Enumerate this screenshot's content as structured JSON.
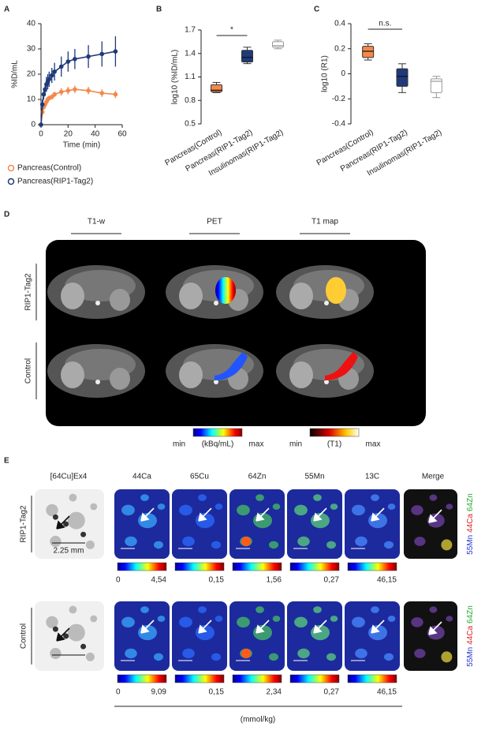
{
  "panel_labels": [
    "A",
    "B",
    "C",
    "D",
    "E"
  ],
  "chart_data": [
    {
      "type": "line",
      "ylabel": "%ID/mL",
      "xlabel": "Time (min)",
      "x": [
        0,
        1,
        2,
        3,
        4,
        5,
        6,
        8,
        10,
        15,
        20,
        25,
        35,
        45,
        55
      ],
      "series": [
        {
          "name": "Pancreas(Control)",
          "color": "#f4894b",
          "values": [
            0,
            5,
            7,
            8,
            9,
            10,
            10.5,
            11,
            12,
            13,
            13.5,
            14,
            13.5,
            12.5,
            12
          ],
          "errors": [
            0,
            1,
            1,
            1,
            1,
            1,
            1,
            1,
            1,
            1.5,
            1.5,
            1.5,
            1.5,
            1.5,
            1.5
          ]
        },
        {
          "name": "Pancreas(RIP1-Tag2)",
          "color": "#1f3a7a",
          "values": [
            0,
            8,
            12,
            14,
            16,
            17,
            18,
            19.5,
            21,
            23,
            25,
            26,
            27,
            28,
            29
          ],
          "errors": [
            0,
            2,
            2,
            2.5,
            3,
            3,
            3,
            3,
            3.5,
            4,
            4,
            4,
            4.5,
            5,
            6
          ]
        }
      ],
      "xlim": [
        0,
        60
      ],
      "xticks": [
        0,
        20,
        40,
        60
      ],
      "ylim": [
        0,
        40
      ],
      "yticks": [
        0,
        10,
        20,
        30,
        40
      ]
    },
    {
      "type": "box",
      "ylabel": "log10 (%ID/mL)",
      "annotation": "*",
      "categories": [
        "Pancreas(Control)",
        "Pancreas(RIP1-Tag2)",
        "Insulinomas(RIP1-Tag2)"
      ],
      "colors": [
        "#f4894b",
        "#1f3a7a",
        "#ffffff"
      ],
      "min": [
        0.9,
        1.27,
        1.46
      ],
      "q1": [
        0.91,
        1.29,
        1.48
      ],
      "median": [
        0.93,
        1.35,
        1.5
      ],
      "q3": [
        1.0,
        1.44,
        1.55
      ],
      "max": [
        1.03,
        1.48,
        1.57
      ],
      "ylim": [
        0.5,
        1.7
      ],
      "yticks": [
        0.5,
        0.8,
        1.1,
        1.4,
        1.7
      ]
    },
    {
      "type": "box",
      "ylabel": "log10 (R1)",
      "annotation": "n.s.",
      "categories": [
        "Pancreas(Control)",
        "Pancreas(RIP1-Tag2)",
        "Insulinomas(RIP1-Tag2)"
      ],
      "colors": [
        "#f4894b",
        "#1f3a7a",
        "#ffffff"
      ],
      "min": [
        0.11,
        -0.15,
        -0.19
      ],
      "q1": [
        0.13,
        -0.1,
        -0.15
      ],
      "median": [
        0.18,
        -0.02,
        -0.06
      ],
      "q3": [
        0.22,
        0.04,
        -0.04
      ],
      "max": [
        0.24,
        0.08,
        -0.02
      ],
      "ylim": [
        -0.4,
        0.4
      ],
      "yticks": [
        -0.4,
        -0.2,
        0,
        0.2,
        0.4
      ]
    }
  ],
  "panel_d": {
    "columns": [
      "T1-w",
      "PET",
      "T1 map"
    ],
    "rows": [
      "RIP1-Tag2",
      "Control"
    ],
    "colorbar_pet": [
      "min",
      "(kBq/mL)",
      "max"
    ],
    "colorbar_t1": [
      "min",
      "(T1)",
      "max"
    ]
  },
  "panel_e": {
    "columns": [
      "[64Cu]Ex4",
      "44Ca",
      "65Cu",
      "64Zn",
      "55Mn",
      "13C",
      "Merge"
    ],
    "scale": "2.25 mm",
    "merge_label": [
      "55Mn",
      "44Ca",
      "64Zn"
    ],
    "unit": "(mmol/kg)",
    "rows": [
      {
        "label": "RIP1-Tag2",
        "min": "0",
        "max": [
          "4,54",
          "0,15",
          "1,56",
          "0,27",
          "46,15"
        ]
      },
      {
        "label": "Control",
        "min": "0",
        "max": [
          "9,09",
          "0,15",
          "2,34",
          "0,27",
          "46,15"
        ]
      }
    ]
  }
}
